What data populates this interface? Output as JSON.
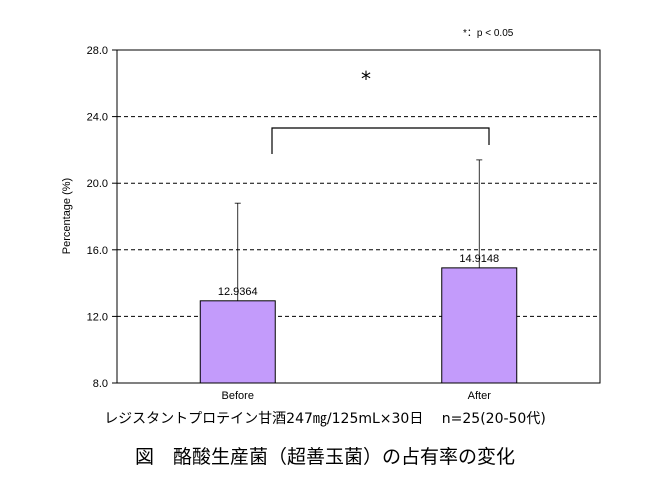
{
  "chart_data": {
    "type": "bar",
    "categories": [
      "Before",
      "After"
    ],
    "values": [
      12.9364,
      14.9148
    ],
    "value_labels": [
      "12.9364",
      "14.9148"
    ],
    "error_upper": [
      18.8,
      21.4
    ],
    "ylabel": "Percentage (%)",
    "ylim": [
      8.0,
      28.0
    ],
    "yticks": [
      "8.0",
      "12.0",
      "16.0",
      "20.0",
      "24.0",
      "28.0"
    ],
    "grid": "dashed horizontal",
    "bar_color": "#c39bfb",
    "significance_mark": "*",
    "significance_key": "*：p < 0.05"
  },
  "subtitle": "レジスタントプロテイン甘酒247㎎/125mL×30日　 n=25(20-50代)",
  "caption": "図　酪酸生産菌（超善玉菌）の占有率の変化"
}
